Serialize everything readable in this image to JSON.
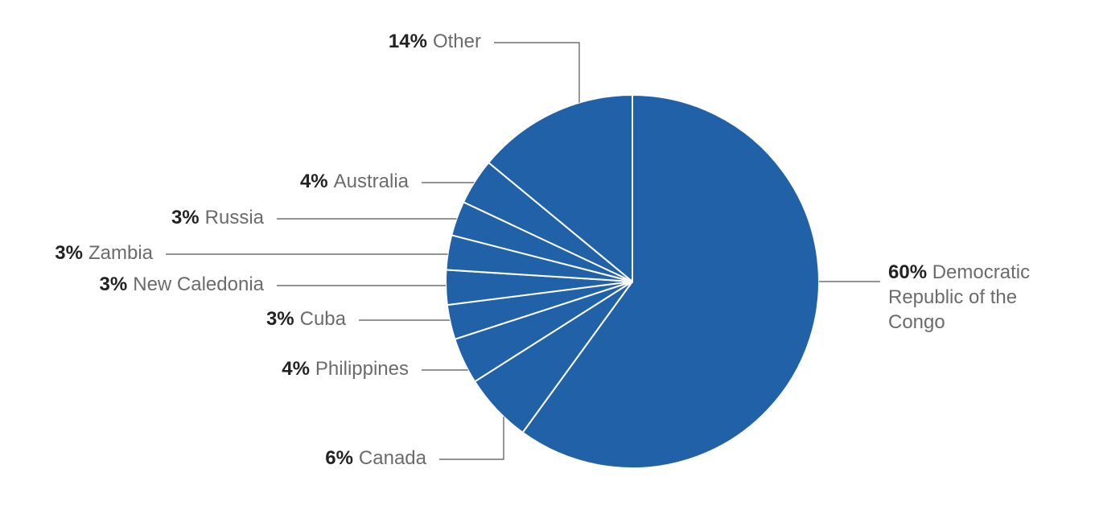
{
  "chart_data": {
    "type": "pie",
    "categories": [
      "Democratic Republic of the Congo",
      "Canada",
      "Philippines",
      "Cuba",
      "New Caledonia",
      "Zambia",
      "Russia",
      "Australia",
      "Other"
    ],
    "values": [
      60,
      6,
      4,
      3,
      3,
      3,
      3,
      4,
      14
    ],
    "value_labels": [
      "60%",
      "6%",
      "4%",
      "3%",
      "3%",
      "3%",
      "3%",
      "4%",
      "14%"
    ],
    "color": "#2161a8"
  }
}
